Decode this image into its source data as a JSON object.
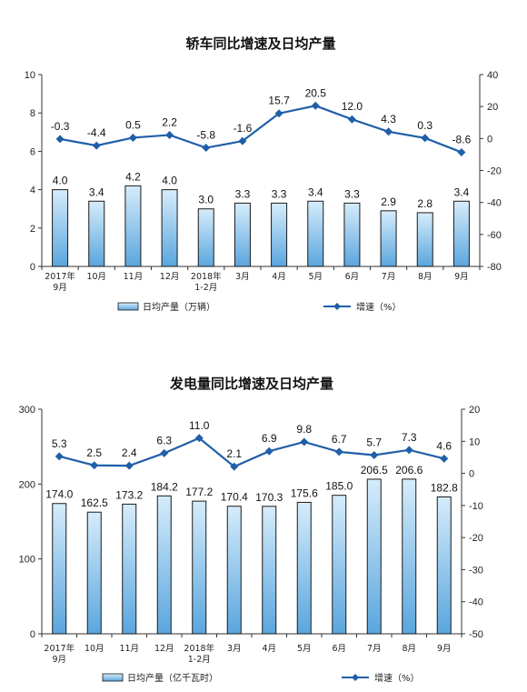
{
  "chart_data": [
    {
      "type": "bar+line",
      "title": "轿车同比增速及日均产量",
      "categories": [
        [
          "2017年",
          "9月"
        ],
        [
          "10月"
        ],
        [
          "11月"
        ],
        [
          "12月"
        ],
        [
          "2018年",
          "1-2月"
        ],
        [
          "3月"
        ],
        [
          "4月"
        ],
        [
          "5月"
        ],
        [
          "6月"
        ],
        [
          "7月"
        ],
        [
          "8月"
        ],
        [
          "9月"
        ]
      ],
      "left_axis": {
        "min": 0,
        "max": 10,
        "ticks": [
          0,
          2,
          4,
          6,
          8,
          10
        ]
      },
      "right_axis": {
        "min": -80,
        "max": 40,
        "ticks": [
          -80,
          -60,
          -40,
          -20,
          0,
          20,
          40
        ]
      },
      "bar_series": {
        "name": "日均产量（万辆）",
        "values": [
          4.0,
          3.4,
          4.2,
          4.0,
          3.0,
          3.3,
          3.3,
          3.4,
          3.3,
          2.9,
          2.8,
          3.4
        ]
      },
      "line_series": {
        "name": "增速（%）",
        "values": [
          -0.3,
          -4.4,
          0.5,
          2.2,
          -5.8,
          -1.6,
          15.7,
          20.5,
          12.0,
          4.3,
          0.3,
          -8.6
        ]
      },
      "legend_placement": "bottom",
      "grid": false
    },
    {
      "type": "bar+line",
      "title": "发电量同比增速及日均产量",
      "categories": [
        [
          "2017年",
          "9月"
        ],
        [
          "10月"
        ],
        [
          "11月"
        ],
        [
          "12月"
        ],
        [
          "2018年",
          "1-2月"
        ],
        [
          "3月"
        ],
        [
          "4月"
        ],
        [
          "5月"
        ],
        [
          "6月"
        ],
        [
          "7月"
        ],
        [
          "8月"
        ],
        [
          "9月"
        ]
      ],
      "left_axis": {
        "min": 0,
        "max": 300,
        "ticks": [
          0,
          100,
          200,
          300
        ]
      },
      "right_axis": {
        "min": -50,
        "max": 20,
        "ticks": [
          -50,
          -40,
          -30,
          -20,
          -10,
          0,
          10,
          20
        ]
      },
      "bar_series": {
        "name": "日均产量（亿千瓦时）",
        "values": [
          174.0,
          162.5,
          173.2,
          184.2,
          177.2,
          170.4,
          170.3,
          175.6,
          185.0,
          206.5,
          206.6,
          182.8
        ]
      },
      "line_series": {
        "name": "增速（%）",
        "values": [
          5.3,
          2.5,
          2.4,
          6.3,
          11.0,
          2.1,
          6.9,
          9.8,
          6.7,
          5.7,
          7.3,
          4.6
        ]
      },
      "legend_placement": "bottom",
      "grid": false
    }
  ],
  "colors": {
    "bar_fill_top": "#d6ecfb",
    "bar_fill_bottom": "#5aa6de",
    "bar_stroke": "#1a1a1a",
    "line": "#1f5fa8",
    "axis": "#333333"
  }
}
